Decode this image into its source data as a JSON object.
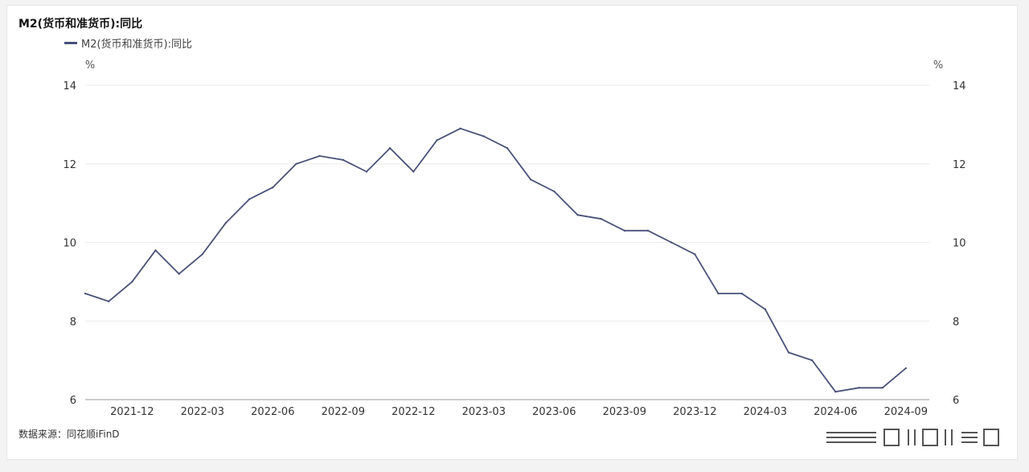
{
  "title": "M2(货币和准货币):同比",
  "legend": {
    "label": "M2(货币和准货币):同比"
  },
  "source": "数据来源：同花顺iFinD",
  "chart_data": {
    "type": "line",
    "title": "M2(货币和准货币):同比",
    "ylabel_left": "%",
    "ylabel_right": "%",
    "ylim": [
      6,
      14
    ],
    "yticks": [
      6,
      8,
      10,
      12,
      14
    ],
    "xlim": [
      "2021-10",
      "2024-10"
    ],
    "xtick_labels": [
      "2021-12",
      "2022-03",
      "2022-06",
      "2022-09",
      "2022-12",
      "2023-03",
      "2023-06",
      "2023-09",
      "2023-12",
      "2024-03",
      "2024-06",
      "2024-09"
    ],
    "legend_position": "top-left",
    "grid": true,
    "series": [
      {
        "name": "M2(货币和准货币):同比",
        "color": "#4a5278",
        "x": [
          "2021-10",
          "2021-11",
          "2021-12",
          "2022-01",
          "2022-02",
          "2022-03",
          "2022-04",
          "2022-05",
          "2022-06",
          "2022-07",
          "2022-08",
          "2022-09",
          "2022-10",
          "2022-11",
          "2022-12",
          "2023-01",
          "2023-02",
          "2023-03",
          "2023-04",
          "2023-05",
          "2023-06",
          "2023-07",
          "2023-08",
          "2023-09",
          "2023-10",
          "2023-11",
          "2023-12",
          "2024-01",
          "2024-02",
          "2024-03",
          "2024-04",
          "2024-05",
          "2024-06",
          "2024-07",
          "2024-08",
          "2024-09"
        ],
        "values": [
          8.7,
          8.5,
          9.0,
          9.8,
          9.2,
          9.7,
          10.5,
          11.1,
          11.4,
          12.0,
          12.2,
          12.1,
          11.8,
          12.4,
          11.8,
          12.6,
          12.9,
          12.7,
          12.4,
          11.6,
          11.3,
          10.7,
          10.6,
          10.3,
          10.3,
          10.0,
          9.7,
          8.7,
          8.7,
          8.3,
          7.2,
          7.0,
          6.2,
          6.3,
          6.3,
          6.8
        ]
      }
    ]
  }
}
